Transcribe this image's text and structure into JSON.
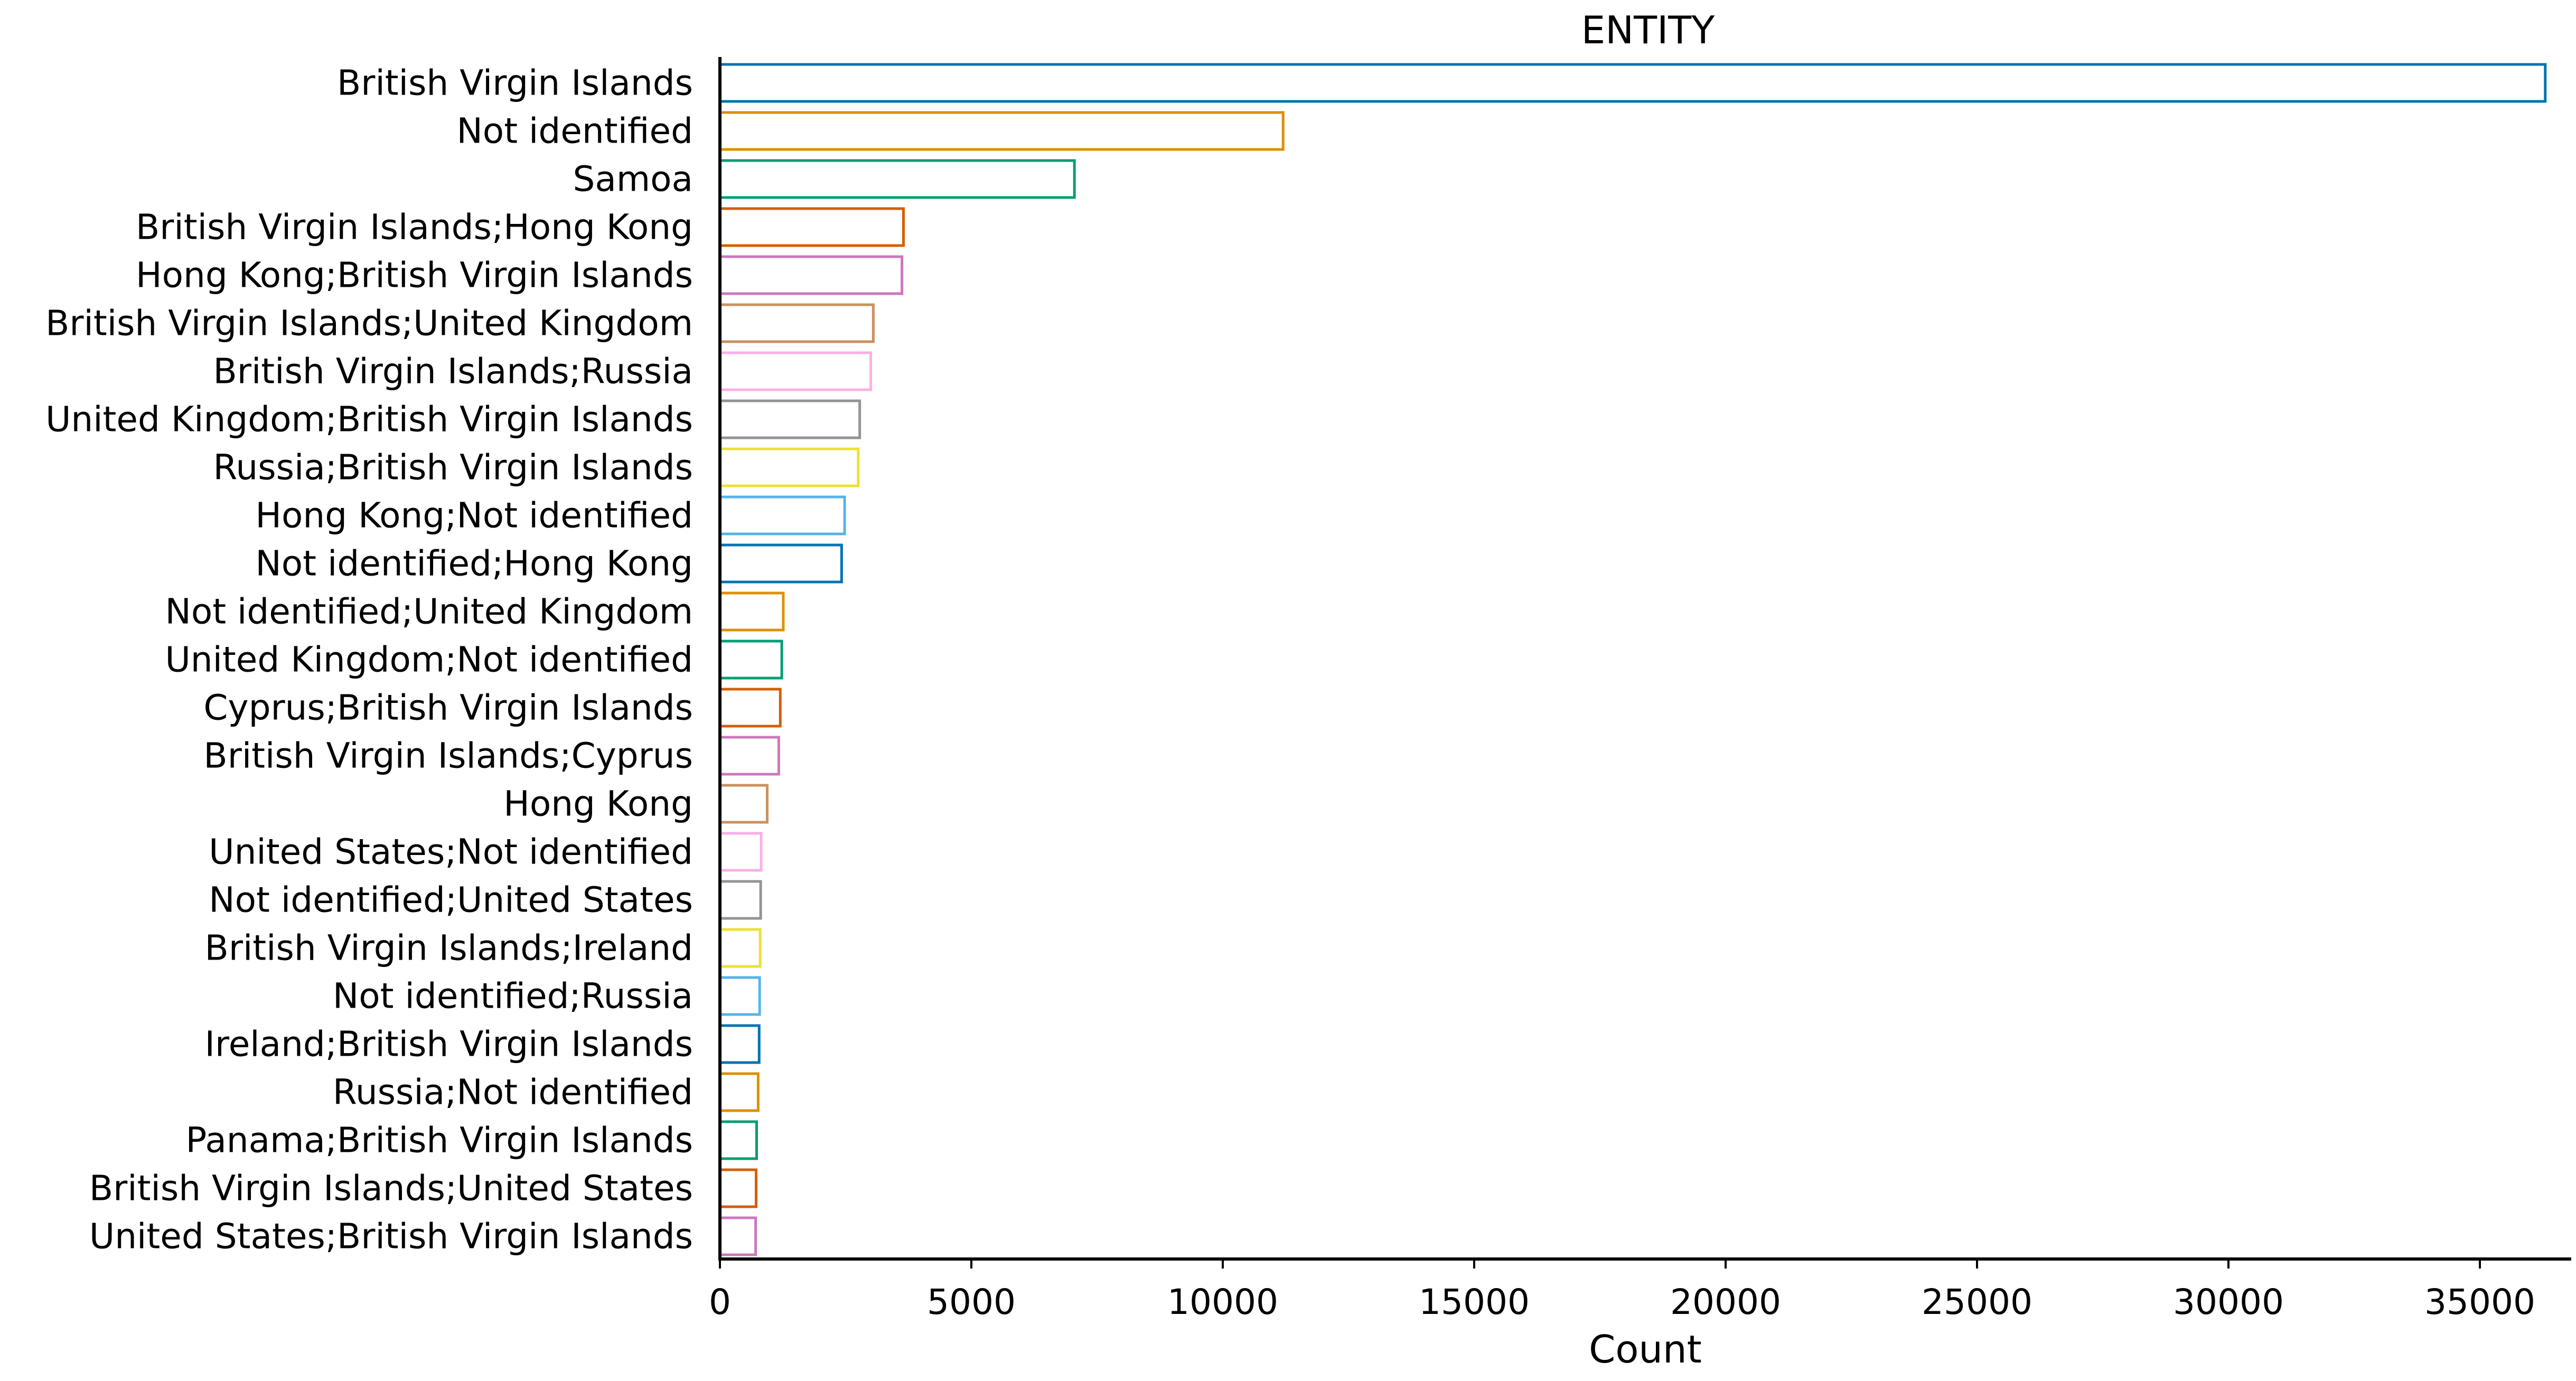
{
  "chart_data": {
    "type": "bar",
    "orientation": "horizontal",
    "title": "ENTITY",
    "xlabel": "Count",
    "ylabel": "",
    "xlim": [
      0,
      38500
    ],
    "xticks": [
      0,
      5000,
      10000,
      15000,
      20000,
      25000,
      30000,
      35000
    ],
    "grid": false,
    "bar_style": "outline",
    "categories": [
      "British Virgin Islands",
      "Not identified",
      "Samoa",
      "British Virgin Islands;Hong Kong",
      "Hong Kong;British Virgin Islands",
      "British Virgin Islands;United Kingdom",
      "British Virgin Islands;Russia",
      "United Kingdom;British Virgin Islands",
      "Russia;British Virgin Islands",
      "Hong Kong;Not identified",
      "Not identified;Hong Kong",
      "Not identified;United Kingdom",
      "United Kingdom;Not identified",
      "Cyprus;British Virgin Islands",
      "British Virgin Islands;Cyprus",
      "Hong Kong",
      "United States;Not identified",
      "Not identified;United States",
      "British Virgin Islands;Ireland",
      "Not identified;Russia",
      "Ireland;British Virgin Islands",
      "Russia;Not identified",
      "Panama;British Virgin Islands",
      "British Virgin Islands;United States",
      "United States;British Virgin Islands"
    ],
    "values": [
      36300,
      11200,
      7050,
      3650,
      3620,
      3050,
      3000,
      2780,
      2750,
      2480,
      2420,
      1260,
      1230,
      1200,
      1170,
      940,
      820,
      810,
      800,
      790,
      780,
      760,
      730,
      720,
      710
    ],
    "colors": [
      "#0173b2",
      "#de8f05",
      "#029e73",
      "#d55e00",
      "#cc78bc",
      "#ca9161",
      "#fbafe4",
      "#949494",
      "#ece133",
      "#56b4e9"
    ]
  }
}
